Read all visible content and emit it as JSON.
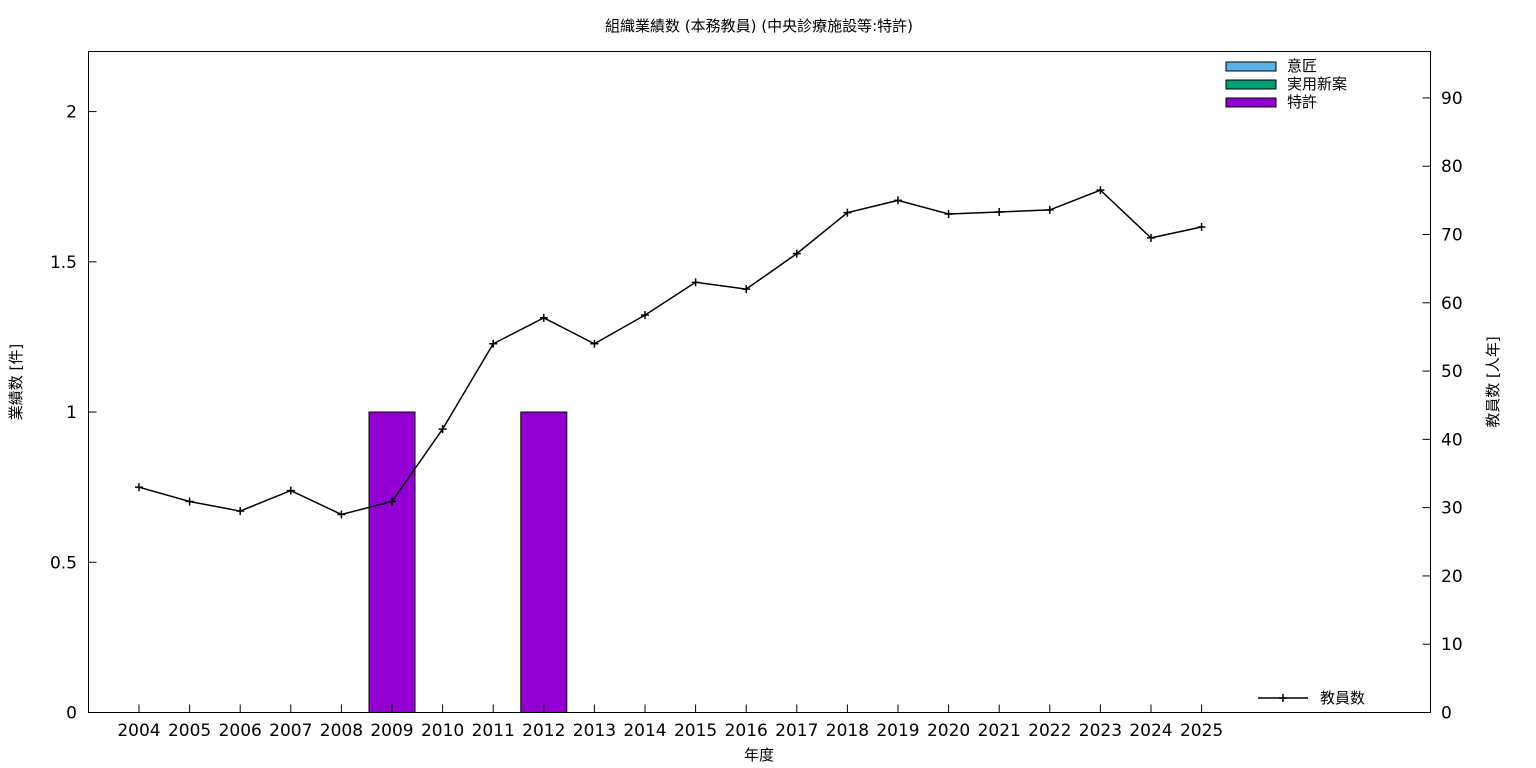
{
  "chart_data": {
    "type": "bar",
    "title": "組織業績数 (本務教員) (中央診療施設等:特許)",
    "xlabel": "年度",
    "ylabel_left": "業績数 [件]",
    "ylabel_right": "教員数 [人年]",
    "categories": [
      "2004",
      "2005",
      "2006",
      "2007",
      "2008",
      "2009",
      "2010",
      "2011",
      "2012",
      "2013",
      "2014",
      "2015",
      "2016",
      "2017",
      "2018",
      "2019",
      "2020",
      "2021",
      "2022",
      "2023",
      "2024",
      "2025"
    ],
    "ylim_left": [
      0,
      2.2
    ],
    "yticks_left": [
      0,
      0.5,
      1,
      1.5,
      2
    ],
    "ytick_labels_left": [
      "0",
      "0.5",
      "1",
      "1.5",
      "2"
    ],
    "ylim_right": [
      0,
      96.8
    ],
    "yticks_right": [
      0,
      10,
      20,
      30,
      40,
      50,
      60,
      70,
      80,
      90
    ],
    "ytick_labels_right": [
      "0",
      "10",
      "20",
      "30",
      "40",
      "50",
      "60",
      "70",
      "80",
      "90"
    ],
    "grid": false,
    "series": [
      {
        "name": "意匠",
        "kind": "bar",
        "axis": "left",
        "color": "#56b4e9",
        "values": [
          0,
          0,
          0,
          0,
          0,
          0,
          0,
          0,
          0,
          0,
          0,
          0,
          0,
          0,
          0,
          0,
          0,
          0,
          0,
          0,
          0,
          0
        ]
      },
      {
        "name": "実用新案",
        "kind": "bar",
        "axis": "left",
        "color": "#009e73",
        "values": [
          0,
          0,
          0,
          0,
          0,
          0,
          0,
          0,
          0,
          0,
          0,
          0,
          0,
          0,
          0,
          0,
          0,
          0,
          0,
          0,
          0,
          0
        ]
      },
      {
        "name": "特許",
        "kind": "bar",
        "axis": "left",
        "color": "#9400d3",
        "values": [
          0,
          0,
          0,
          0,
          0,
          1,
          0,
          0,
          1,
          0,
          0,
          0,
          0,
          0,
          0,
          0,
          0,
          0,
          0,
          0,
          0,
          0
        ]
      },
      {
        "name": "教員数",
        "kind": "line",
        "axis": "right",
        "color": "#000000",
        "values": [
          33.0,
          30.9,
          29.5,
          32.5,
          29.0,
          30.9,
          41.5,
          54.0,
          57.8,
          54.0,
          58.2,
          63.0,
          62.0,
          67.2,
          73.2,
          75.0,
          73.0,
          73.3,
          73.6,
          76.5,
          69.5,
          71.1
        ]
      }
    ],
    "legend_top": {
      "placement": "top-right",
      "items": [
        "意匠",
        "実用新案",
        "特許"
      ]
    },
    "legend_bottom": {
      "placement": "bottom-right",
      "items": [
        "教員数"
      ]
    }
  }
}
